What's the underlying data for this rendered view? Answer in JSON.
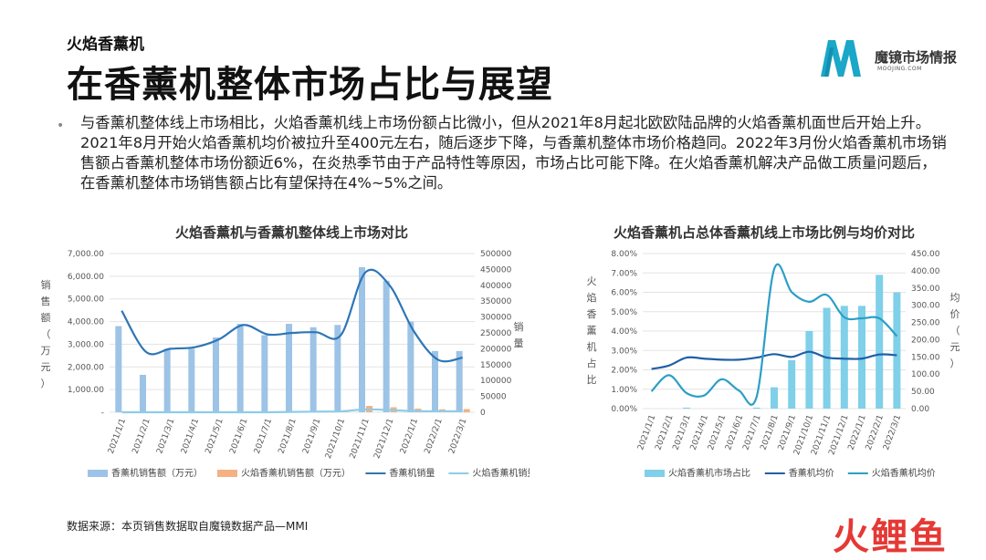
{
  "header": {
    "subtitle": "火焰香薰机",
    "title": "在香薰机整体市场占比与展望"
  },
  "logo": {
    "brand": "魔镜市场情报",
    "url": "MOOJING.COM",
    "accent": "#1aa7c8"
  },
  "body": {
    "paragraph": "与香薰机整体线上市场相比，火焰香薰机线上市场份额占比微小，但从2021年8月起北欧欧陆品牌的火焰香薰机面世后开始上升。2021年8月开始火焰香薰机均价被拉升至400元左右，随后逐步下降，与香薰机整体市场价格趋同。2022年3月份火焰香薰机市场销售额占香薰机整体市场份额近6%，在炎热季节由于产品特性等原因，市场占比可能下降。在火焰香薰机解决产品做工质量问题后，在香薰机整体市场销售额占比有望保持在4%~5%之间。"
  },
  "footer": {
    "source": "数据来源：本页销售数据取自魔镜数据产品—MMI",
    "watermark": "火鲤鱼"
  },
  "chart_data": [
    {
      "type": "bar+line",
      "title": "火焰香薰机与香薰机整体线上市场对比",
      "categories": [
        "2021/1/1",
        "2021/2/1",
        "2021/3/1",
        "2021/4/1",
        "2021/5/1",
        "2021/6/1",
        "2021/7/1",
        "2021/8/1",
        "2021/9/1",
        "2021/10/1",
        "2021/11/1",
        "2021/12/1",
        "2022/1/1",
        "2022/2/1",
        "2022/3/1"
      ],
      "y_left": {
        "label": "销售额（万元）",
        "range": [
          0,
          7000
        ],
        "ticks": [
          "-",
          "1,000.00",
          "2,000.00",
          "3,000.00",
          "4,000.00",
          "5,000.00",
          "6,000.00",
          "7,000.00"
        ]
      },
      "y_right": {
        "label": "销量",
        "range": [
          0,
          500000
        ],
        "ticks": [
          "0",
          "50000",
          "100000",
          "150000",
          "200000",
          "250000",
          "300000",
          "350000",
          "400000",
          "450000",
          "500000"
        ]
      },
      "series": [
        {
          "name": "香薰机销售额（万元）",
          "kind": "bar",
          "axis": "left",
          "color": "#9dc3e6",
          "values": [
            3800,
            1650,
            2800,
            2800,
            3300,
            3900,
            3400,
            3900,
            3750,
            3850,
            6400,
            5800,
            4000,
            2700,
            2700
          ]
        },
        {
          "name": "火焰香薰机销售额（万元）",
          "kind": "bar",
          "axis": "left",
          "color": "#f4b183",
          "values": [
            0,
            0,
            0,
            0,
            0,
            0,
            0,
            20,
            50,
            80,
            280,
            220,
            160,
            130,
            140
          ]
        },
        {
          "name": "香薰机销量",
          "kind": "line",
          "axis": "right",
          "color": "#2e75b6",
          "values": [
            320000,
            190000,
            200000,
            205000,
            230000,
            275000,
            245000,
            250000,
            252000,
            243000,
            440000,
            400000,
            255000,
            165000,
            172000
          ]
        },
        {
          "name": "火焰香薰机销量",
          "kind": "line",
          "axis": "right",
          "color": "#8dcde8",
          "values": [
            0,
            0,
            0,
            0,
            0,
            0,
            0,
            1000,
            2000,
            3000,
            9000,
            7000,
            4000,
            3000,
            3500
          ]
        }
      ],
      "legend": "bottom"
    },
    {
      "type": "bar+line",
      "title": "火焰香薰机占总体香薰机线上市场比例与均价对比",
      "categories": [
        "2021/1/1",
        "2021/2/1",
        "2021/3/1",
        "2021/4/1",
        "2021/5/1",
        "2021/6/1",
        "2021/7/1",
        "2021/8/1",
        "2021/9/1",
        "2021/10/1",
        "2021/11/1",
        "2021/12/1",
        "2022/1/1",
        "2022/2/1",
        "2022/3/1"
      ],
      "y_left": {
        "label": "火焰香薰机占比",
        "range": [
          0,
          8
        ],
        "ticks": [
          "0.00%",
          "1.00%",
          "2.00%",
          "3.00%",
          "4.00%",
          "5.00%",
          "6.00%",
          "7.00%",
          "8.00%"
        ]
      },
      "y_right": {
        "label": "均价（元）",
        "range": [
          0,
          450
        ],
        "ticks": [
          "0.00",
          "50.00",
          "100.00",
          "150.00",
          "200.00",
          "250.00",
          "300.00",
          "350.00",
          "400.00",
          "450.00"
        ]
      },
      "series": [
        {
          "name": "火焰香薰机市场占比",
          "kind": "bar",
          "axis": "left",
          "color": "#7fd0e8",
          "values": [
            0.0,
            0.0,
            0.05,
            0.0,
            0.0,
            0.0,
            0.05,
            1.1,
            2.5,
            4.0,
            5.2,
            5.3,
            5.3,
            6.9,
            6.0
          ]
        },
        {
          "name": "香薰机均价",
          "kind": "line",
          "axis": "right",
          "color": "#1f5fa6",
          "values": [
            115,
            125,
            148,
            145,
            142,
            142,
            148,
            158,
            150,
            165,
            148,
            145,
            145,
            157,
            155
          ]
        },
        {
          "name": "火焰香薰机均价",
          "kind": "line",
          "axis": "right",
          "color": "#2b9fc6",
          "values": [
            50,
            97,
            45,
            38,
            85,
            52,
            35,
            405,
            338,
            310,
            330,
            265,
            262,
            262,
            210
          ]
        }
      ],
      "legend": "bottom"
    }
  ]
}
